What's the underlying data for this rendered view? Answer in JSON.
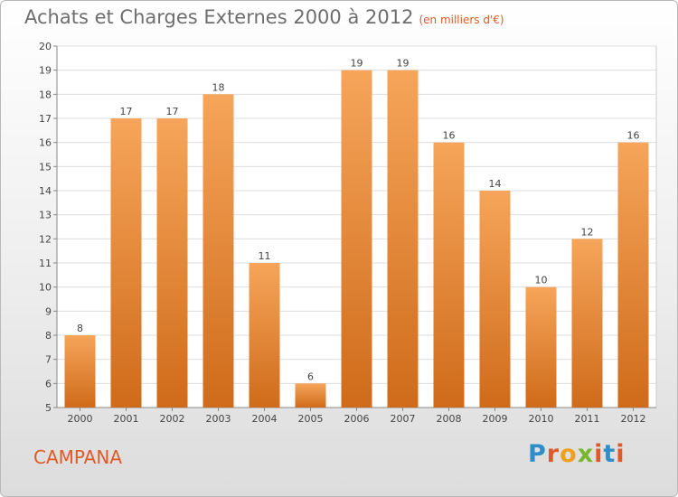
{
  "title": "Achats et Charges Externes 2000 à 2012",
  "subtitle": "(en milliers d'€)",
  "commune": "CAMPANA",
  "logo": {
    "letters": [
      "P",
      "r",
      "o",
      "x",
      "i",
      "t",
      "i"
    ],
    "colors": [
      "#2f8ec9",
      "#e05a27",
      "#f0a020",
      "#7ab52f",
      "#e05a27",
      "#2f8ec9",
      "#e05a27"
    ]
  },
  "colors": {
    "bar_light": "#f6a55a",
    "bar_dark": "#cf6b1a",
    "text_accent": "#e05a27"
  },
  "chart_data": {
    "type": "bar",
    "categories": [
      "2000",
      "2001",
      "2002",
      "2003",
      "2004",
      "2005",
      "2006",
      "2007",
      "2008",
      "2009",
      "2010",
      "2011",
      "2012"
    ],
    "values": [
      8,
      17,
      17,
      18,
      11,
      6,
      19,
      19,
      16,
      14,
      10,
      12,
      16
    ],
    "ylim": [
      5,
      20
    ],
    "yticks": [
      5,
      6,
      7,
      8,
      9,
      10,
      11,
      12,
      13,
      14,
      15,
      16,
      17,
      18,
      19,
      20
    ],
    "grid": true,
    "data_labels": true
  }
}
